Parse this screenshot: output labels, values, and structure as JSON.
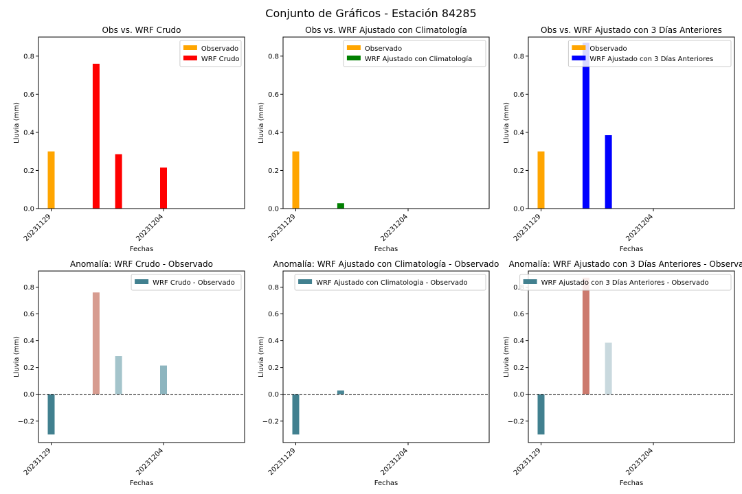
{
  "suptitle": "Conjunto de Gráficos - Estación 84285",
  "colors": {
    "observado": "#ffa500",
    "wrf_crudo": "#ff0000",
    "wrf_clim": "#008000",
    "wrf_3dias": "#0000ff",
    "legend_anomaly": "#41808f",
    "anomaly_negative_strong": "#41808f",
    "anomaly_positive_strong": "#cc7a6e"
  },
  "chart_data": [
    {
      "type": "bar",
      "title": "Obs vs. WRF Crudo",
      "xlabel": "Fechas",
      "ylabel": "Lluvia (mm)",
      "x_tick_labels": [
        "20231129",
        "20231204"
      ],
      "ylim": [
        0,
        0.9
      ],
      "y_ticks": [
        "0.0",
        "0.2",
        "0.4",
        "0.6",
        "0.8"
      ],
      "legend": "top-right",
      "series": [
        {
          "name": "Observado",
          "color": "#ffa500",
          "values": [
            {
              "date": "20231129",
              "y": 0.3
            }
          ]
        },
        {
          "name": "WRF Crudo",
          "color": "#ff0000",
          "values": [
            {
              "date": "20231201",
              "y": 0.76
            },
            {
              "date": "20231202",
              "y": 0.285
            },
            {
              "date": "20231204",
              "y": 0.215
            }
          ]
        }
      ]
    },
    {
      "type": "bar",
      "title": "Obs vs. WRF Ajustado con Climatología",
      "xlabel": "Fechas",
      "ylabel": "Lluvia (mm)",
      "x_tick_labels": [
        "20231129",
        "20231204"
      ],
      "ylim": [
        0,
        0.9
      ],
      "y_ticks": [
        "0.0",
        "0.2",
        "0.4",
        "0.6",
        "0.8"
      ],
      "legend": "top-right",
      "series": [
        {
          "name": "Observado",
          "color": "#ffa500",
          "values": [
            {
              "date": "20231129",
              "y": 0.3
            }
          ]
        },
        {
          "name": "WRF Ajustado con Climatología",
          "color": "#008000",
          "values": [
            {
              "date": "20231201",
              "y": 0.028
            }
          ]
        }
      ]
    },
    {
      "type": "bar",
      "title": "Obs vs. WRF Ajustado con 3 Días Anteriores",
      "xlabel": "Fechas",
      "ylabel": "Lluvia (mm)",
      "x_tick_labels": [
        "20231129",
        "20231204"
      ],
      "ylim": [
        0,
        0.9
      ],
      "y_ticks": [
        "0.0",
        "0.2",
        "0.4",
        "0.6",
        "0.8"
      ],
      "legend": "top-right",
      "series": [
        {
          "name": "Observado",
          "color": "#ffa500",
          "values": [
            {
              "date": "20231129",
              "y": 0.3
            }
          ]
        },
        {
          "name": "WRF Ajustado con 3 Días Anteriores",
          "color": "#0000ff",
          "values": [
            {
              "date": "20231201",
              "y": 0.87
            },
            {
              "date": "20231202",
              "y": 0.385
            }
          ]
        }
      ]
    },
    {
      "type": "bar",
      "title": "Anomalía: WRF Crudo - Observado",
      "xlabel": "Fechas",
      "ylabel": "Lluvia (mm)",
      "x_tick_labels": [
        "20231129",
        "20231204"
      ],
      "ylim": [
        -0.36,
        0.92
      ],
      "y_ticks": [
        "−0.2",
        "0.0",
        "0.2",
        "0.4",
        "0.6",
        "0.8"
      ],
      "zero_line": "dashed",
      "legend": "top-right",
      "series": [
        {
          "name": "WRF Crudo - Observado",
          "color": "#41808f",
          "values": [
            {
              "date": "20231129",
              "y": -0.3,
              "color": "#41808f"
            },
            {
              "date": "20231201",
              "y": 0.76,
              "color": "#d79c90"
            },
            {
              "date": "20231202",
              "y": 0.285,
              "color": "#a4c4cb"
            },
            {
              "date": "20231204",
              "y": 0.215,
              "color": "#8db5bf"
            }
          ]
        }
      ]
    },
    {
      "type": "bar",
      "title": "Anomalía: WRF Ajustado con Climatología - Observado",
      "xlabel": "Fechas",
      "ylabel": "Lluvia (mm)",
      "x_tick_labels": [
        "20231129",
        "20231204"
      ],
      "ylim": [
        -0.36,
        0.92
      ],
      "y_ticks": [
        "−0.2",
        "0.0",
        "0.2",
        "0.4",
        "0.6",
        "0.8"
      ],
      "zero_line": "dashed",
      "legend": "top-right",
      "series": [
        {
          "name": "WRF Ajustado con Climatologia - Observado",
          "color": "#41808f",
          "values": [
            {
              "date": "20231129",
              "y": -0.3,
              "color": "#41808f"
            },
            {
              "date": "20231201",
              "y": 0.028,
              "color": "#4a8796"
            }
          ]
        }
      ]
    },
    {
      "type": "bar",
      "title": "Anomalía: WRF Ajustado con 3 Días Anteriores - Observado",
      "xlabel": "Fechas",
      "ylabel": "Lluvia (mm)",
      "x_tick_labels": [
        "20231129",
        "20231204"
      ],
      "ylim": [
        -0.36,
        0.92
      ],
      "y_ticks": [
        "−0.2",
        "0.0",
        "0.2",
        "0.4",
        "0.6",
        "0.8"
      ],
      "zero_line": "dashed",
      "legend": "top-right",
      "series": [
        {
          "name": "WRF Ajustado con 3 Días Anteriores - Observado",
          "color": "#41808f",
          "values": [
            {
              "date": "20231129",
              "y": -0.3,
              "color": "#41808f"
            },
            {
              "date": "20231201",
              "y": 0.87,
              "color": "#cc7a6e"
            },
            {
              "date": "20231202",
              "y": 0.385,
              "color": "#c9d9de"
            }
          ]
        }
      ]
    }
  ]
}
